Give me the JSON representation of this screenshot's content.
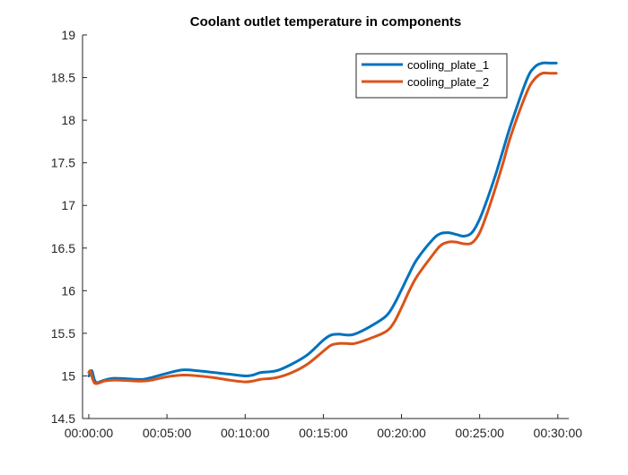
{
  "chart_data": {
    "type": "line",
    "title": "Coolant outlet temperature in components",
    "xlabel": "",
    "ylabel": "",
    "x_ticks": [
      "00:00:00",
      "00:05:00",
      "00:10:00",
      "00:15:00",
      "00:20:00",
      "00:25:00",
      "00:30:00"
    ],
    "x_tick_minutes": [
      0,
      5,
      10,
      15,
      20,
      25,
      30
    ],
    "y_ticks": [
      "14.5",
      "15",
      "15.5",
      "16",
      "16.5",
      "17",
      "17.5",
      "18",
      "18.5",
      "19"
    ],
    "xlim_minutes": [
      -0.4,
      30.7
    ],
    "ylim": [
      14.5,
      19
    ],
    "x_unit": "minutes",
    "grid": false,
    "legend_position": "top-right",
    "series": [
      {
        "name": "cooling_plate_1",
        "color": "#0072BD",
        "x": [
          0,
          0.1,
          0.2,
          0.35,
          0.5,
          0.7,
          1,
          1.5,
          2,
          3,
          3.5,
          4,
          5,
          6,
          7,
          8,
          9,
          10,
          10.5,
          11,
          12,
          13,
          14,
          15,
          15.5,
          16,
          16.5,
          17,
          18,
          19,
          19.5,
          20,
          20.5,
          21,
          22,
          22.5,
          23,
          23.5,
          24,
          24.5,
          25,
          25.5,
          26,
          26.5,
          27,
          28,
          28.5,
          29,
          29.5,
          29.9
        ],
        "values": [
          15.0,
          15.03,
          15.06,
          14.96,
          14.92,
          14.93,
          14.95,
          14.97,
          14.97,
          14.96,
          14.96,
          14.98,
          15.03,
          15.07,
          15.06,
          15.04,
          15.02,
          15.0,
          15.01,
          15.04,
          15.06,
          15.14,
          15.25,
          15.42,
          15.48,
          15.49,
          15.48,
          15.49,
          15.58,
          15.7,
          15.83,
          16.01,
          16.2,
          16.37,
          16.6,
          16.67,
          16.68,
          16.66,
          16.64,
          16.68,
          16.84,
          17.08,
          17.35,
          17.65,
          17.95,
          18.47,
          18.62,
          18.67,
          18.67,
          18.67
        ]
      },
      {
        "name": "cooling_plate_2",
        "color": "#D95319",
        "x": [
          0,
          0.1,
          0.2,
          0.35,
          0.5,
          0.7,
          1,
          1.5,
          2,
          3,
          3.5,
          4,
          5,
          6,
          7,
          8,
          9,
          10,
          10.5,
          11,
          12,
          13,
          14,
          15,
          15.5,
          16,
          16.5,
          17,
          18,
          19,
          19.5,
          20,
          20.5,
          21,
          22,
          22.5,
          23,
          23.5,
          24,
          24.5,
          25,
          25.5,
          26,
          26.5,
          27,
          28,
          28.5,
          29,
          29.5,
          29.9
        ],
        "values": [
          15.04,
          15.06,
          14.99,
          14.92,
          14.91,
          14.92,
          14.94,
          14.95,
          14.95,
          14.94,
          14.94,
          14.95,
          14.99,
          15.01,
          15.0,
          14.98,
          14.95,
          14.93,
          14.94,
          14.96,
          14.98,
          15.04,
          15.14,
          15.29,
          15.36,
          15.38,
          15.38,
          15.38,
          15.44,
          15.52,
          15.62,
          15.8,
          16.0,
          16.17,
          16.42,
          16.53,
          16.57,
          16.57,
          16.55,
          16.56,
          16.68,
          16.92,
          17.2,
          17.5,
          17.82,
          18.32,
          18.48,
          18.55,
          18.55,
          18.55
        ]
      }
    ]
  }
}
